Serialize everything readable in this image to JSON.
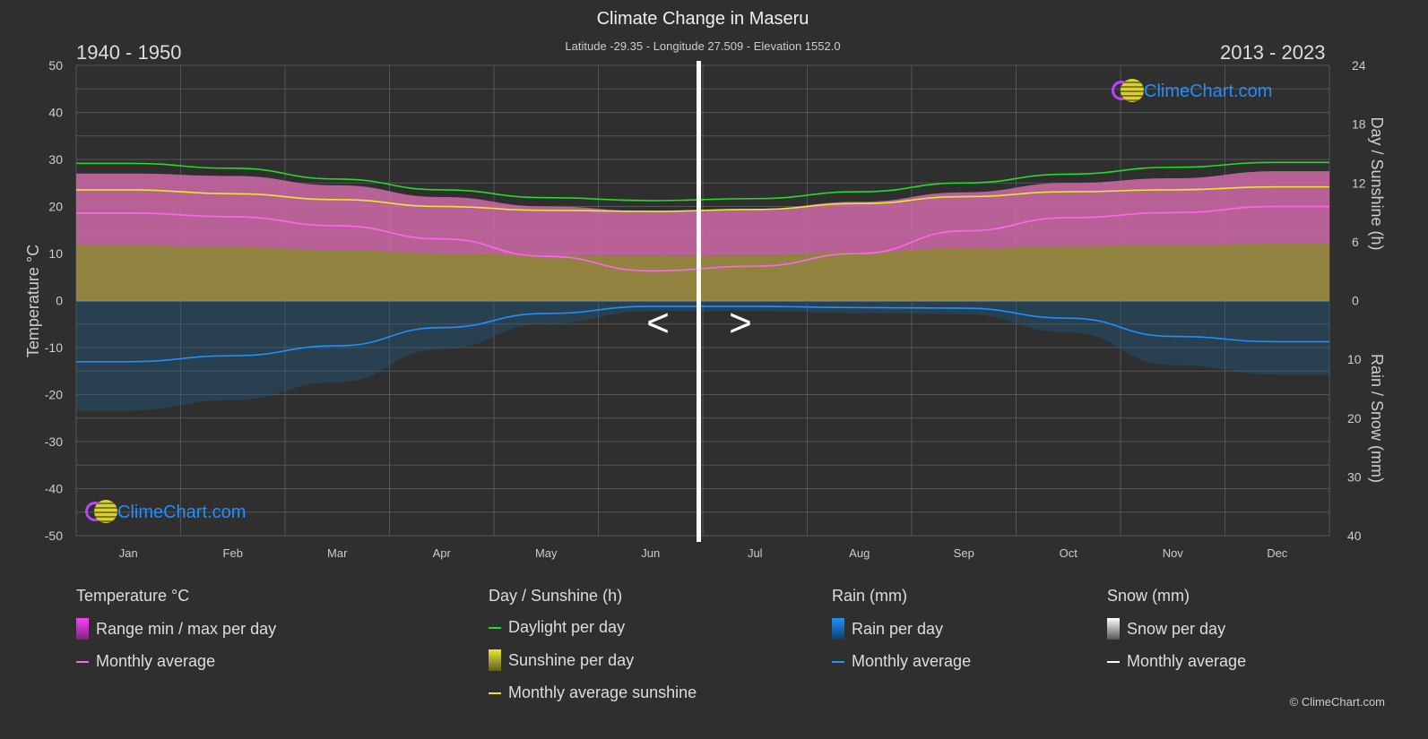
{
  "title": "Climate Change in Maseru",
  "subtitle": "Latitude -29.35 - Longitude 27.509 - Elevation 1552.0",
  "period_left": "1940 - 1950",
  "period_right": "2013 - 2023",
  "logo_text": "ClimeChart.com",
  "copyright": "© ClimeChart.com",
  "nav": {
    "prev": "<",
    "next": ">"
  },
  "colors": {
    "daylight": "#22dd22",
    "sunshine": "#e8e830",
    "temp_avg": "#ff66ee",
    "rain": "#1e90ff",
    "range": "#e040c0",
    "snow": "#ffffff"
  },
  "chart_data": {
    "type": "area",
    "categories": [
      "Jan",
      "Feb",
      "Mar",
      "Apr",
      "May",
      "Jun",
      "Jul",
      "Aug",
      "Sep",
      "Oct",
      "Nov",
      "Dec"
    ],
    "left_axis": {
      "label": "Temperature °C",
      "range": [
        -50,
        50
      ],
      "ticks": [
        "50",
        "40",
        "30",
        "20",
        "10",
        "0",
        "-10",
        "-20",
        "-30",
        "-40",
        "-50"
      ]
    },
    "right_axis_top": {
      "label": "Day / Sunshine (h)",
      "range": [
        0,
        24
      ],
      "ticks": [
        "24",
        "18",
        "12",
        "6",
        "0"
      ]
    },
    "right_axis_bottom": {
      "label": "Rain / Snow (mm)",
      "range": [
        0,
        40
      ],
      "ticks": [
        "0",
        "10",
        "20",
        "30",
        "40"
      ]
    },
    "grid": true,
    "series": [
      {
        "name": "Daylight per day",
        "unit": "h",
        "values": [
          14.0,
          13.5,
          12.4,
          11.3,
          10.5,
          10.2,
          10.4,
          11.1,
          12.0,
          12.9,
          13.6,
          14.1
        ]
      },
      {
        "name": "Monthly average sunshine",
        "unit": "h",
        "values": [
          11.3,
          10.9,
          10.3,
          9.6,
          9.2,
          9.1,
          9.3,
          9.9,
          10.6,
          11.1,
          11.3,
          11.6
        ]
      },
      {
        "name": "Temperature monthly average",
        "unit": "°C",
        "values": [
          18.6,
          17.8,
          15.9,
          13.1,
          9.4,
          6.3,
          7.3,
          10.0,
          14.8,
          17.6,
          18.7,
          20.0
        ]
      },
      {
        "name": "Max temperature (range)",
        "unit": "°C",
        "values": [
          27,
          26.5,
          24.5,
          22,
          20,
          19,
          19.5,
          21,
          23,
          25,
          26,
          27.5
        ]
      },
      {
        "name": "Rain monthly average",
        "unit": "mm",
        "values": [
          10.4,
          9.4,
          7.7,
          4.6,
          2.2,
          1.0,
          1.0,
          1.2,
          1.3,
          3.0,
          6.1,
          7.0
        ]
      }
    ]
  },
  "legend": {
    "temperature": {
      "title": "Temperature °C",
      "items": [
        "Range min / max per day",
        "Monthly average"
      ]
    },
    "sun": {
      "title": "Day / Sunshine (h)",
      "items": [
        "Daylight per day",
        "Sunshine per day",
        "Monthly average sunshine"
      ]
    },
    "rain": {
      "title": "Rain (mm)",
      "items": [
        "Rain per day",
        "Monthly average"
      ]
    },
    "snow": {
      "title": "Snow (mm)",
      "items": [
        "Snow per day",
        "Monthly average"
      ]
    }
  }
}
